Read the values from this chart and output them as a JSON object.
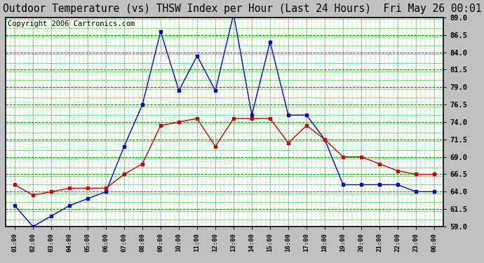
{
  "title": "Outdoor Temperature (vs) THSW Index per Hour (Last 24 Hours)  Fri May 26 00:01",
  "copyright": "Copyright 2006 Cartronics.com",
  "x_labels": [
    "01:00",
    "02:00",
    "03:00",
    "04:00",
    "05:00",
    "06:00",
    "07:00",
    "08:00",
    "09:00",
    "10:00",
    "11:00",
    "12:00",
    "13:00",
    "14:00",
    "15:00",
    "16:00",
    "17:00",
    "18:00",
    "19:00",
    "20:00",
    "21:00",
    "22:00",
    "23:00",
    "00:00"
  ],
  "blue_data": [
    62.0,
    59.0,
    60.5,
    62.0,
    63.0,
    64.0,
    70.5,
    76.5,
    87.0,
    78.5,
    83.5,
    78.5,
    89.5,
    75.0,
    85.5,
    75.0,
    75.0,
    71.5,
    65.0,
    65.0,
    65.0,
    65.0,
    64.0,
    64.0
  ],
  "red_data": [
    65.0,
    63.5,
    64.0,
    64.5,
    64.5,
    64.5,
    66.5,
    68.0,
    73.5,
    74.0,
    74.5,
    70.5,
    74.5,
    74.5,
    74.5,
    71.0,
    73.5,
    71.5,
    69.0,
    69.0,
    68.0,
    67.0,
    66.5,
    66.5
  ],
  "blue_color": "#0000cc",
  "red_color": "#cc0000",
  "plot_bg": "#ffffff",
  "grid_color_major": "#008800",
  "grid_color_minor": "#00cc00",
  "outer_bg": "#c0c0c0",
  "ymin": 59.0,
  "ymax": 89.0,
  "yticks": [
    59.0,
    61.5,
    64.0,
    66.5,
    69.0,
    71.5,
    74.0,
    76.5,
    79.0,
    81.5,
    84.0,
    86.5,
    89.0
  ],
  "title_fontsize": 10.5,
  "copyright_fontsize": 7.5
}
